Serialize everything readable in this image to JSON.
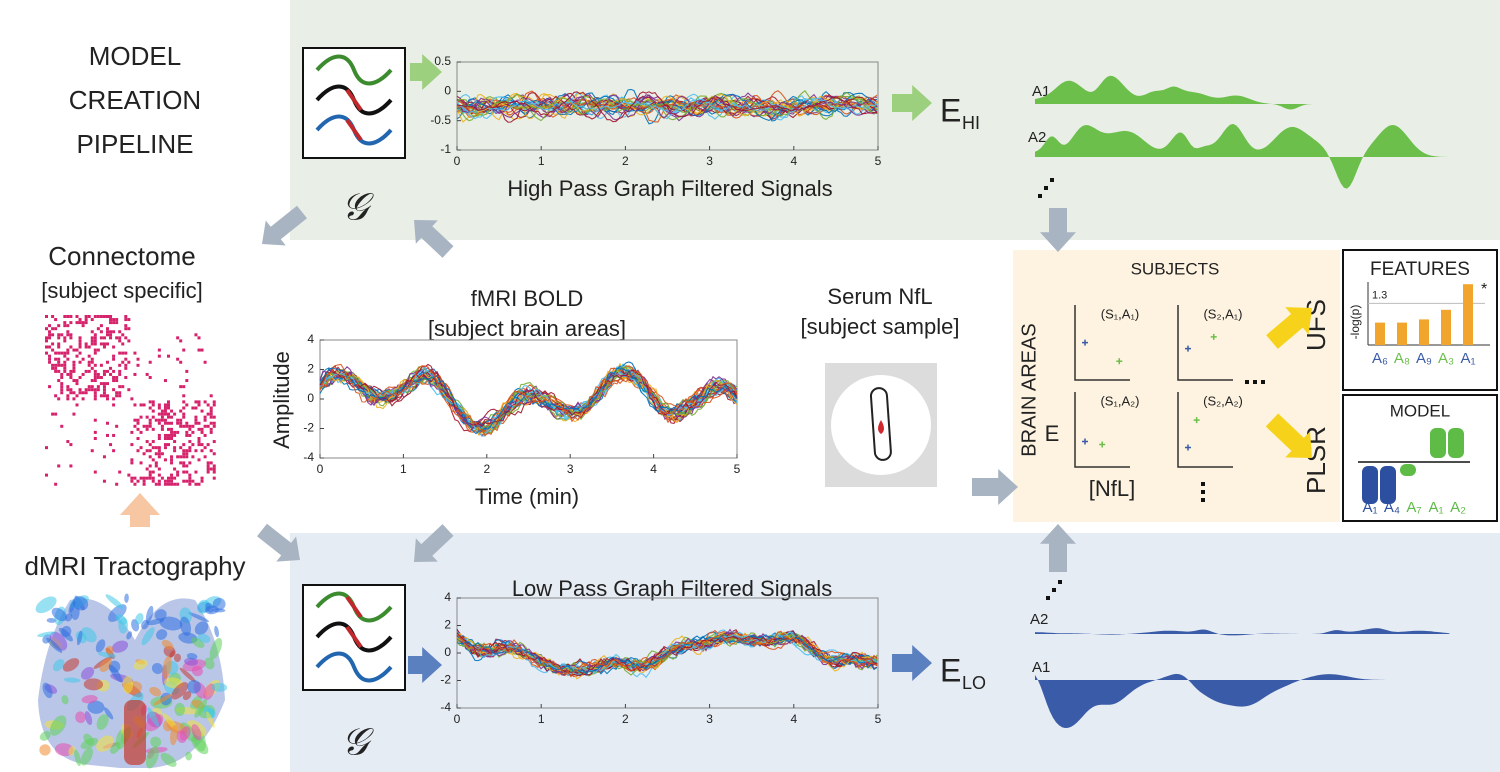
{
  "title": [
    "MODEL",
    "CREATION",
    "PIPELINE"
  ],
  "connectome": {
    "title": "Connectome",
    "subtitle": "[subject specific]"
  },
  "tractography": {
    "title": "dMRI Tractography"
  },
  "high_pass": {
    "symbol": "𝒢",
    "title": "High Pass Graph Filtered Signals",
    "yticks": [
      0.5,
      0,
      -0.5,
      -1
    ],
    "xticks": [
      0,
      1,
      2,
      3,
      4,
      5
    ],
    "output": {
      "base": "E",
      "sub": "HI"
    },
    "areas": [
      "A1",
      "A2"
    ]
  },
  "fmri": {
    "title": "fMRI BOLD",
    "subtitle": "[subject brain areas]",
    "ylabel": "Amplitude",
    "xlabel": "Time (min)",
    "yticks": [
      4,
      2,
      0,
      -2,
      -4
    ],
    "xticks": [
      0,
      1,
      2,
      3,
      4,
      5
    ]
  },
  "serum": {
    "title": "Serum NfL",
    "subtitle": "[subject sample]"
  },
  "low_pass": {
    "symbol": "𝒢",
    "title": "Low Pass Graph Filtered Signals",
    "yticks": [
      4,
      2,
      0,
      -2,
      -4
    ],
    "xticks": [
      0,
      1,
      2,
      3,
      4,
      5
    ],
    "output": {
      "base": "E",
      "sub": "LO"
    },
    "areas": [
      "A2",
      "A1"
    ]
  },
  "analysis": {
    "title": "SUBJECTS",
    "side_label": "BRAIN AREAS",
    "ylabel": "E",
    "xlabel": "[NfL]",
    "panels": [
      "(S₁,A₁)",
      "(S₂,A₁)",
      "(S₁,A₂)",
      "(S₂,A₂)"
    ]
  },
  "ufs": {
    "label": "UFS",
    "title": "FEATURES",
    "ylabel": "-log(p)",
    "threshold": 1.3,
    "star": "*",
    "categories": [
      "A₆",
      "A₈",
      "A₉",
      "A₃",
      "A₁"
    ],
    "values": [
      0.7,
      0.7,
      0.8,
      1.1,
      1.9
    ]
  },
  "plsr": {
    "label": "PLSR",
    "title": "MODEL",
    "categories": [
      "A₁",
      "A₄",
      "A₇",
      "A₁",
      "A₂"
    ]
  }
}
